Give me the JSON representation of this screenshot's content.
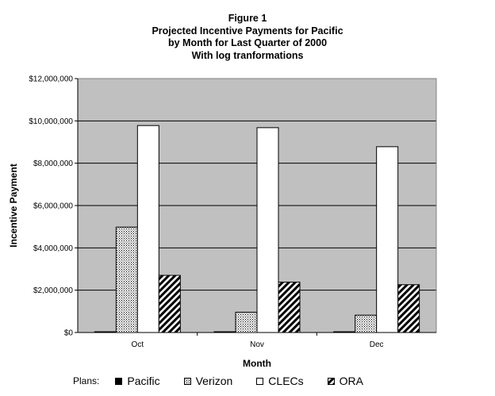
{
  "chart_data": {
    "type": "bar",
    "title_lines": [
      "Figure 1",
      "Projected Incentive Payments for Pacific",
      "by Month for Last Quarter of 2000",
      "With log tranformations"
    ],
    "xlabel": "Month",
    "ylabel": "Incentive Payment",
    "categories": [
      "Oct",
      "Nov",
      "Dec"
    ],
    "ylim": [
      0,
      12000000
    ],
    "y_ticks": [
      0,
      2000000,
      4000000,
      6000000,
      8000000,
      10000000,
      12000000
    ],
    "y_tick_labels": [
      "$0",
      "$2,000,000",
      "$4,000,000",
      "$6,000,000",
      "$8,000,000",
      "$10,000,000",
      "$12,000,000"
    ],
    "grid": true,
    "plot_background": "#c0c0c0",
    "legend_position": "bottom",
    "legend_title": "Plans:",
    "series": [
      {
        "name": "Pacific",
        "values": [
          30000,
          30000,
          30000
        ],
        "fill": "solid-black"
      },
      {
        "name": "Verizon",
        "values": [
          4980000,
          960000,
          820000
        ],
        "fill": "dotted"
      },
      {
        "name": "CLECs",
        "values": [
          9780000,
          9680000,
          8780000
        ],
        "fill": "white"
      },
      {
        "name": "ORA",
        "values": [
          2700000,
          2380000,
          2260000
        ],
        "fill": "diagonal-hatch"
      }
    ]
  }
}
